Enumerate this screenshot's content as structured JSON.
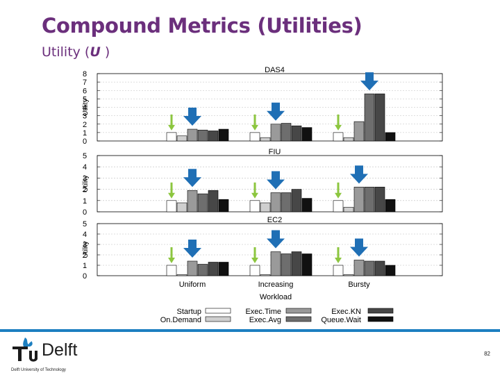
{
  "slide": {
    "title": "Compound Metrics (Utilities)",
    "subtitle_prefix": "Utility (",
    "subtitle_var": "U",
    "subtitle_suffix": " )",
    "page_number": "82"
  },
  "logo": {
    "letters_tu": "TU",
    "name": "Delft",
    "tagline": "Delft University of Technology",
    "brand_color": "#1c7fc0"
  },
  "colors": {
    "title": "#6b2f7c",
    "arrow_best": "#1f6fb5",
    "arrow_baseline": "#8cc63f"
  },
  "chart_data": {
    "type": "bar",
    "xlabel": "Workload",
    "ylabel": "Utility",
    "categories": [
      "Uniform",
      "Increasing",
      "Bursty"
    ],
    "legend": {
      "placement": "bottom",
      "entries": [
        "Startup",
        "On.Demand",
        "Exec.Time",
        "Exec.Avg",
        "Exec.KN",
        "Queue.Wait"
      ]
    },
    "series_styles": [
      {
        "name": "Startup",
        "color": "#ffffff"
      },
      {
        "name": "On.Demand",
        "color": "#cfcfcf"
      },
      {
        "name": "Exec.Time",
        "color": "#9a9a9a"
      },
      {
        "name": "Exec.Avg",
        "color": "#6e6e6e"
      },
      {
        "name": "Exec.KN",
        "color": "#474747"
      },
      {
        "name": "Queue.Wait",
        "color": "#111111"
      }
    ],
    "panels": [
      {
        "title": "DAS4",
        "ylim": [
          0,
          8
        ],
        "yticks": [
          "0",
          "1",
          "2",
          "3",
          "4",
          "5",
          "6",
          "7",
          "8"
        ],
        "values": [
          [
            1,
            0.6,
            1.4,
            1.3,
            1.2,
            1.4
          ],
          [
            1,
            0.4,
            2.0,
            2.1,
            1.8,
            1.6
          ],
          [
            1,
            0.4,
            2.3,
            5.6,
            5.6,
            1.0
          ]
        ],
        "best": [
          2,
          2,
          3
        ]
      },
      {
        "title": "FIU",
        "ylim": [
          0,
          5
        ],
        "yticks": [
          "0",
          "1",
          "2",
          "3",
          "4",
          "5"
        ],
        "values": [
          [
            1,
            0.8,
            1.9,
            1.6,
            1.9,
            1.1
          ],
          [
            1,
            0.8,
            1.7,
            1.7,
            2.0,
            1.2
          ],
          [
            1,
            0.4,
            2.2,
            2.2,
            2.2,
            1.1
          ]
        ],
        "best": [
          2,
          2,
          2
        ]
      },
      {
        "title": "EC2",
        "ylim": [
          0,
          5
        ],
        "yticks": [
          "0",
          "1",
          "2",
          "3",
          "4",
          "5"
        ],
        "values": [
          [
            1,
            0.1,
            1.4,
            1.1,
            1.3,
            1.3
          ],
          [
            1,
            0.1,
            2.3,
            2.1,
            2.3,
            2.1
          ],
          [
            1,
            0.1,
            1.5,
            1.4,
            1.4,
            1.0
          ]
        ],
        "best": [
          2,
          2,
          2
        ]
      }
    ]
  }
}
